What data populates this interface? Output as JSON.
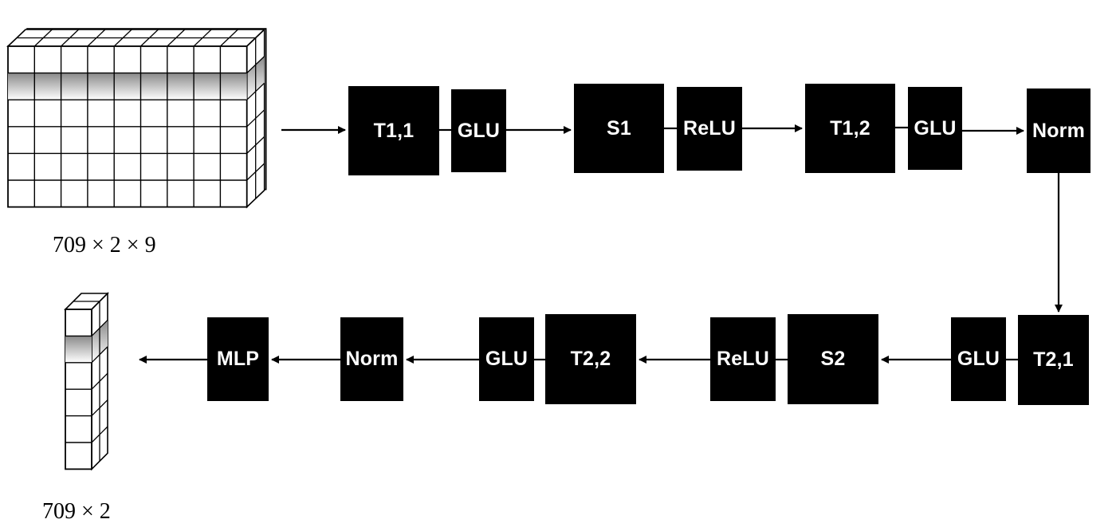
{
  "blocks": [
    {
      "id": "T11",
      "label": "T1,1",
      "fill": "#000000"
    },
    {
      "id": "GLU1",
      "label": "GLU",
      "fill": "#000000"
    },
    {
      "id": "S1",
      "label": "S1",
      "fill": "#000000"
    },
    {
      "id": "ReLU1",
      "label": "ReLU",
      "fill": "#000000"
    },
    {
      "id": "T12",
      "label": "T1,2",
      "fill": "#000000"
    },
    {
      "id": "GLU2",
      "label": "GLU",
      "fill": "#000000"
    },
    {
      "id": "Norm1",
      "label": "Norm",
      "fill": "#000000"
    },
    {
      "id": "T21",
      "label": "T2,1",
      "fill": "#000000"
    },
    {
      "id": "GLU3",
      "label": "GLU",
      "fill": "#000000"
    },
    {
      "id": "S2",
      "label": "S2",
      "fill": "#000000"
    },
    {
      "id": "ReLU2",
      "label": "ReLU",
      "fill": "#000000"
    },
    {
      "id": "T22",
      "label": "T2,2",
      "fill": "#000000"
    },
    {
      "id": "GLU4",
      "label": "GLU",
      "fill": "#000000"
    },
    {
      "id": "Norm2",
      "label": "Norm",
      "fill": "#000000"
    },
    {
      "id": "MLP",
      "label": "MLP",
      "fill": "#000000"
    }
  ],
  "input_tensor": {
    "label": "709 × 2 × 9",
    "icon": "tensor-grid-icon"
  },
  "output_tensor": {
    "label": "709 × 2",
    "icon": "tensor-column-icon"
  },
  "colors": {
    "block": "#000000",
    "text": "#ffffff",
    "line": "#000000",
    "shade": "#999999"
  }
}
